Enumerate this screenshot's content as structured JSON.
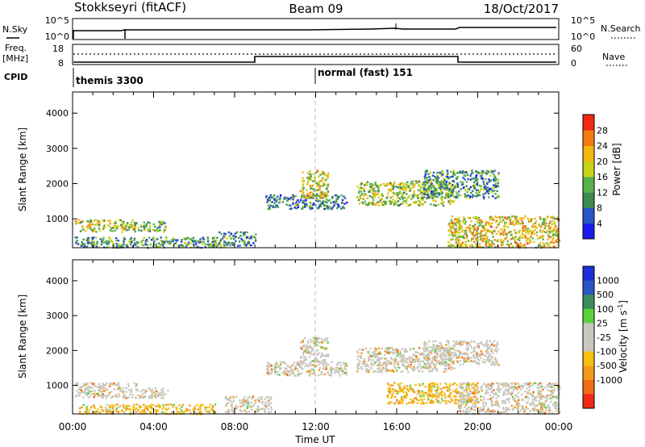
{
  "header": {
    "station": "Stokkseyri (fitACF)",
    "beam": "Beam 09",
    "date": "18/Oct/2017"
  },
  "top_panels": {
    "nsky_label": "N.Sky",
    "nsearch_label": "N.Search",
    "nsky_ticks": [
      "10^5",
      "10^0"
    ],
    "nsearch_ticks": [
      "10^5",
      "10^0"
    ],
    "freq_label_1": "Freq.",
    "freq_label_2": "[MHz]",
    "freq_ticks": [
      "18",
      "8"
    ],
    "nave_label": "Nave",
    "nave_ticks": [
      "60",
      "0"
    ],
    "cpid_label": "CPID",
    "cpid_segments": [
      {
        "name": "themis 3300",
        "start_hour": 0
      },
      {
        "name": "normal (fast) 151",
        "start_hour": 12
      }
    ]
  },
  "x_axis": {
    "label": "Time UT",
    "ticks": [
      "00:00",
      "04:00",
      "08:00",
      "12:00",
      "16:00",
      "20:00",
      "00:00"
    ]
  },
  "chart_data": [
    {
      "type": "heatmap",
      "title": "",
      "xlabel": "",
      "ylabel": "Slant Range [km]",
      "xlim": [
        0,
        24
      ],
      "ylim": [
        180,
        4600
      ],
      "yticks": [
        "1000",
        "2000",
        "3000",
        "4000"
      ],
      "colorbar_label": "Power [dB]",
      "colorbar_ticks": [
        "4",
        "8",
        "12",
        "16",
        "20",
        "24",
        "28"
      ],
      "colorscale": [
        "#1a1aee",
        "#2a55c8",
        "#3c8a52",
        "#58b14a",
        "#c7d21b",
        "#f2b712",
        "#f47b12",
        "#ee2a15"
      ],
      "echo_regions": [
        {
          "t_start": 0.1,
          "t_end": 3.0,
          "r_low": 650,
          "r_high": 1000,
          "level": 0.55
        },
        {
          "t_start": 3.0,
          "t_end": 4.6,
          "r_low": 650,
          "r_high": 950,
          "level": 0.45
        },
        {
          "t_start": 0.1,
          "t_end": 7.5,
          "r_low": 200,
          "r_high": 500,
          "level": 0.35
        },
        {
          "t_start": 7.2,
          "t_end": 9.0,
          "r_low": 250,
          "r_high": 650,
          "level": 0.3
        },
        {
          "t_start": 9.5,
          "t_end": 13.5,
          "r_low": 1300,
          "r_high": 1700,
          "level": 0.25
        },
        {
          "t_start": 11.2,
          "t_end": 12.6,
          "r_low": 1600,
          "r_high": 2400,
          "level": 0.6
        },
        {
          "t_start": 14.0,
          "t_end": 18.8,
          "r_low": 1400,
          "r_high": 2100,
          "level": 0.5
        },
        {
          "t_start": 17.3,
          "t_end": 21.0,
          "r_low": 1600,
          "r_high": 2400,
          "level": 0.3
        },
        {
          "t_start": 18.5,
          "t_end": 24.0,
          "r_low": 200,
          "r_high": 1100,
          "level": 0.65
        }
      ]
    },
    {
      "type": "heatmap",
      "title": "",
      "xlabel": "Time UT",
      "ylabel": "Slant Range [km]",
      "xlim": [
        0,
        24
      ],
      "ylim": [
        180,
        4600
      ],
      "yticks": [
        "1000",
        "2000",
        "3000",
        "4000"
      ],
      "colorbar_label": "Velocity [m s^-1]",
      "colorbar_ticks": [
        "1000",
        "500",
        "100",
        "25",
        "-25",
        "-100",
        "-500",
        "-1000"
      ],
      "colorscale": [
        "#1c2fd6",
        "#2c55c4",
        "#3c8c5c",
        "#5dcf3a",
        "#c8c8c0",
        "#c8c8c0",
        "#f4c012",
        "#f49a18",
        "#f06a18",
        "#ee2a18"
      ],
      "echo_regions": [
        {
          "t_start": 0.1,
          "t_end": 3.2,
          "r_low": 650,
          "r_high": 1100,
          "level": 0.5
        },
        {
          "t_start": 3.2,
          "t_end": 4.7,
          "r_low": 650,
          "r_high": 950,
          "level": 0.5
        },
        {
          "t_start": 0.3,
          "t_end": 7.0,
          "r_low": 200,
          "r_high": 480,
          "level": 0.75
        },
        {
          "t_start": 7.5,
          "t_end": 9.8,
          "r_low": 250,
          "r_high": 700,
          "level": 0.7
        },
        {
          "t_start": 9.5,
          "t_end": 13.5,
          "r_low": 1300,
          "r_high": 1700,
          "level": 0.5
        },
        {
          "t_start": 11.2,
          "t_end": 12.6,
          "r_low": 1600,
          "r_high": 2400,
          "level": 0.5
        },
        {
          "t_start": 14.0,
          "t_end": 18.8,
          "r_low": 1400,
          "r_high": 2100,
          "level": 0.5
        },
        {
          "t_start": 17.3,
          "t_end": 21.0,
          "r_low": 1600,
          "r_high": 2300,
          "level": 0.5
        },
        {
          "t_start": 15.5,
          "t_end": 20.0,
          "r_low": 500,
          "r_high": 1100,
          "level": 0.8
        },
        {
          "t_start": 19.0,
          "t_end": 24.0,
          "r_low": 200,
          "r_high": 1100,
          "level": 0.65
        }
      ]
    }
  ]
}
